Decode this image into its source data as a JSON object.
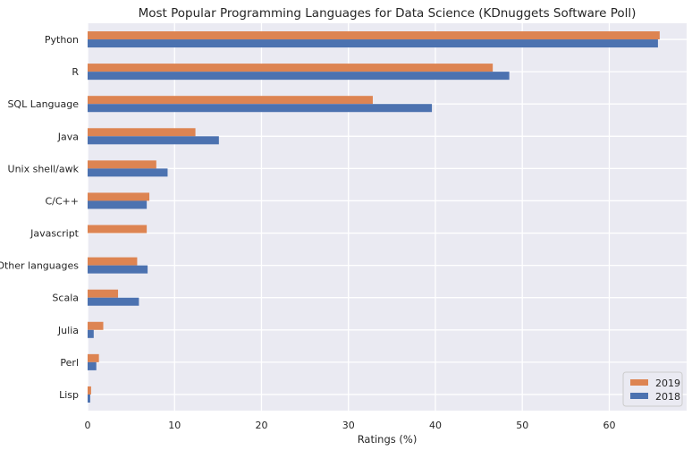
{
  "chart_data": {
    "type": "bar",
    "orientation": "horizontal",
    "title": "Most Popular Programming Languages for Data Science (KDnuggets Software Poll)",
    "xlabel": "Ratings (%)",
    "ylabel": "",
    "xlim": [
      0,
      68.9
    ],
    "xticks": [
      "0",
      "10",
      "20",
      "30",
      "40",
      "50",
      "60"
    ],
    "grid": true,
    "legend_position": "bottom-right",
    "categories": [
      "Python",
      "R",
      "SQL Language",
      "Java",
      "Unix shell/awk",
      "C/C++",
      "Javascript",
      "Other languages",
      "Scala",
      "Julia",
      "Perl",
      "Lisp"
    ],
    "series": [
      {
        "name": "2019",
        "color": "#dd8452",
        "values": [
          65.8,
          46.6,
          32.8,
          12.4,
          7.9,
          7.1,
          6.8,
          5.7,
          3.5,
          1.8,
          1.3,
          0.4
        ]
      },
      {
        "name": "2018",
        "color": "#4c72b0",
        "values": [
          65.6,
          48.5,
          39.6,
          15.1,
          9.2,
          6.8,
          0,
          6.9,
          5.9,
          0.7,
          1.0,
          0.3
        ]
      }
    ],
    "legend_order": [
      "2019",
      "2018"
    ],
    "background_color": "#eaeaf2",
    "grid_color": "#ffffff"
  }
}
